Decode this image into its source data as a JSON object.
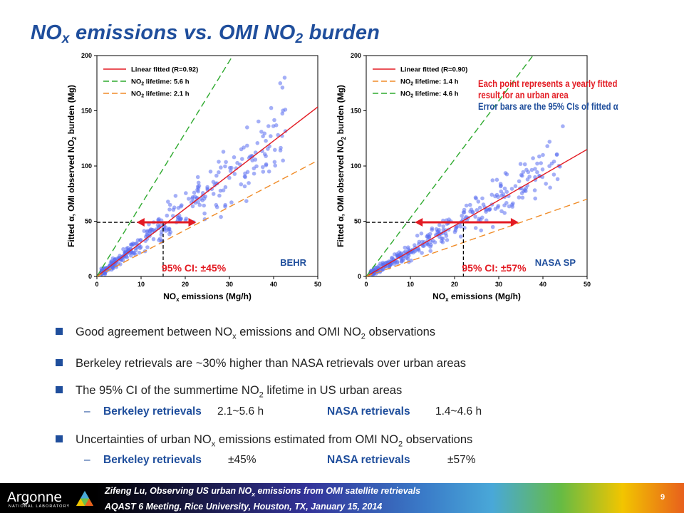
{
  "title": {
    "main": "NO",
    "sub1": "x",
    "mid": " emissions vs. OMI NO",
    "sub2": "2",
    "end": " burden"
  },
  "colors": {
    "points": "#5a6ef0",
    "fit_line": "#e31b23",
    "green_line": "#2eaa2e",
    "orange_line": "#f08c28",
    "arrow": "#e31b23",
    "title": "#1f4e9c"
  },
  "chart_data": [
    {
      "type": "scatter",
      "panel_label": "BEHR",
      "x_axis": {
        "ticks": [
          "0",
          "10",
          "20",
          "30",
          "40",
          "50"
        ],
        "range": [
          0,
          50
        ]
      },
      "y_axis": {
        "ticks": [
          "0",
          "50",
          "100",
          "150",
          "200"
        ],
        "range": [
          0,
          200
        ]
      },
      "legend": [
        {
          "label": "Linear fitted (R=0.92)",
          "style": "solid",
          "color": "#e31b23"
        },
        {
          "label": "NO2 lifetime: 5.6 h",
          "style": "dashed",
          "color": "#2eaa2e"
        },
        {
          "label": "NO2 lifetime: 2.1 h",
          "style": "dashed",
          "color": "#f08c28"
        }
      ],
      "lines": [
        {
          "name": "Linear fitted (R=0.92)",
          "slope": 3.07,
          "color": "#e31b23",
          "dashed": false
        },
        {
          "name": "NO2 lifetime: 5.6 h",
          "slope": 6.5,
          "color": "#2eaa2e",
          "dashed": true
        },
        {
          "name": "NO2 lifetime: 2.1 h",
          "slope": 2.1,
          "color": "#f08c28",
          "dashed": true
        }
      ],
      "ci_arrow": {
        "x_center": 15,
        "x_low": 9,
        "x_high": 22.5,
        "y": 49
      },
      "ci_label": "95% CI: ±45%",
      "point_cloud": {
        "fit_slope": 3.07,
        "x_max": 43,
        "extreme_points": [
          [
            41.5,
            175
          ],
          [
            42.5,
            180
          ],
          [
            42,
            171
          ],
          [
            34,
            135
          ]
        ]
      }
    },
    {
      "type": "scatter",
      "panel_label": "NASA SP",
      "x_axis": {
        "ticks": [
          "0",
          "10",
          "20",
          "30",
          "40",
          "50"
        ],
        "range": [
          0,
          50
        ]
      },
      "y_axis": {
        "ticks": [
          "0",
          "50",
          "100",
          "150",
          "200"
        ],
        "range": [
          0,
          200
        ]
      },
      "legend": [
        {
          "label": "Linear fitted (R=0.90)",
          "style": "solid",
          "color": "#e31b23"
        },
        {
          "label": "NO2 lifetime: 1.4 h",
          "style": "dashed",
          "color": "#f08c28"
        },
        {
          "label": "NO2 lifetime: 4.6 h",
          "style": "dashed",
          "color": "#2eaa2e"
        }
      ],
      "lines": [
        {
          "name": "Linear fitted (R=0.90)",
          "slope": 2.3,
          "color": "#e31b23",
          "dashed": false
        },
        {
          "name": "NO2 lifetime: 4.6 h",
          "slope": 5.3,
          "color": "#2eaa2e",
          "dashed": true
        },
        {
          "name": "NO2 lifetime: 1.4 h",
          "slope": 1.4,
          "color": "#f08c28",
          "dashed": true
        }
      ],
      "ci_arrow": {
        "x_center": 22,
        "x_low": 11,
        "x_high": 34.5,
        "y": 49
      },
      "ci_label": "95% CI: ±57%",
      "point_cloud": {
        "fit_slope": 2.3,
        "x_max": 44,
        "extreme_points": [
          [
            41,
            118
          ],
          [
            41.5,
            122
          ],
          [
            44.5,
            136
          ],
          [
            40,
            110
          ]
        ]
      }
    }
  ],
  "axis_text": {
    "x_title_pre": "NO",
    "x_title_sub": "x",
    "x_title_post": " emissions (Mg/h)",
    "y_title_pre": "Fitted α, OMI observed NO",
    "y_title_sub": "2",
    "y_title_post": " burden (Mg)",
    "legend_no2": "NO",
    "legend_sub": "2"
  },
  "notes": {
    "line1": "Each point represents a yearly fitted",
    "line2": "result for an urban area",
    "line3": "Error bars are the 95% CIs of fitted α"
  },
  "bullets": {
    "b1_a": "Good agreement between NO",
    "b1_sub1": "x",
    "b1_b": " emissions and OMI NO",
    "b1_sub2": "2",
    "b1_c": " observations",
    "b2": "Berkeley retrievals are ~30% higher than NASA retrievals over urban areas",
    "b3_a": "The 95% CI of the summertime NO",
    "b3_sub": "2",
    "b3_b": " lifetime in US urban areas",
    "b3_dash": "–",
    "b3_k1": "Berkeley retrievals",
    "b3_v1": "2.1~5.6 h",
    "b3_k2": "NASA retrievals",
    "b3_v2": "1.4~4.6 h",
    "b4_a": "Uncertainties of urban NO",
    "b4_sub1": "x",
    "b4_b": " emissions estimated from OMI NO",
    "b4_sub2": "2",
    "b4_c": " observations",
    "b4_dash": "–",
    "b4_k1": "Berkeley retrievals",
    "b4_v1": "±45%",
    "b4_k2": "NASA retrievals",
    "b4_v2": "±57%"
  },
  "footer": {
    "logo": "Argonne",
    "logo_sub": "NATIONAL LABORATORY",
    "line1_a": "Zifeng Lu, Observing US urban NO",
    "line1_sub": "x",
    "line1_b": " emissions from OMI satellite retrievals",
    "line2": "AQAST 6 Meeting, Rice University, Houston, TX, January 15, 2014",
    "page": "9"
  }
}
